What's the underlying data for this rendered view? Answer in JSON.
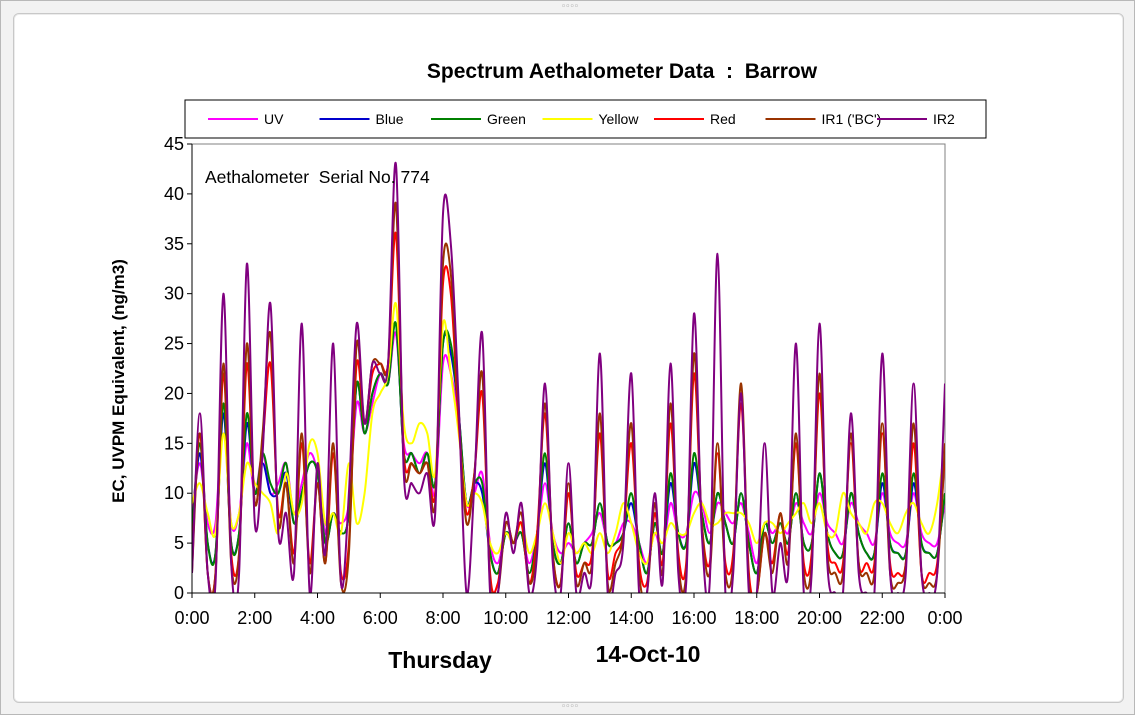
{
  "window": {
    "grip_glyph": "◦◦◦◦"
  },
  "chart_data": {
    "type": "line",
    "title": "Spectrum Aethalometer Data  :  Barrow",
    "annotation": "Aethalometer  Serial No. 774",
    "ylabel": "EC, UVPM Equivalent, (ng/m3)",
    "xlabel_day": "Thursday",
    "xlabel_date": "14-Oct-10",
    "ylim": [
      0,
      45
    ],
    "yticks": [
      0,
      5,
      10,
      15,
      20,
      25,
      30,
      35,
      40,
      45
    ],
    "xlim": [
      0,
      24
    ],
    "xticks": [
      "0:00",
      "2:00",
      "4:00",
      "6:00",
      "8:00",
      "10:00",
      "12:00",
      "14:00",
      "16:00",
      "18:00",
      "20:00",
      "22:00",
      "0:00"
    ],
    "grid": false,
    "legend_position": "top",
    "x_hours": [
      0.0,
      0.25,
      0.5,
      0.75,
      1.0,
      1.25,
      1.5,
      1.75,
      2.0,
      2.25,
      2.5,
      2.75,
      3.0,
      3.25,
      3.5,
      3.75,
      4.0,
      4.25,
      4.5,
      4.75,
      5.0,
      5.25,
      5.5,
      5.75,
      6.0,
      6.25,
      6.5,
      6.75,
      7.0,
      7.25,
      7.5,
      7.75,
      8.0,
      8.25,
      8.5,
      8.75,
      9.0,
      9.25,
      9.5,
      9.75,
      10.0,
      10.25,
      10.5,
      10.75,
      11.0,
      11.25,
      11.5,
      11.75,
      12.0,
      12.25,
      12.5,
      12.75,
      13.0,
      13.25,
      13.5,
      13.75,
      14.0,
      14.25,
      14.5,
      14.75,
      15.0,
      15.25,
      15.5,
      15.75,
      16.0,
      16.25,
      16.5,
      16.75,
      17.0,
      17.25,
      17.5,
      17.75,
      18.0,
      18.25,
      18.5,
      18.75,
      19.0,
      19.25,
      19.5,
      19.75,
      20.0,
      20.25,
      20.5,
      20.75,
      21.0,
      21.25,
      21.5,
      21.75,
      22.0,
      22.25,
      22.5,
      22.75,
      23.0,
      23.25,
      23.5,
      23.75,
      24.0
    ],
    "series": [
      {
        "name": "UV",
        "color": "#ff00ff",
        "values": [
          8,
          13,
          7,
          7,
          18,
          7,
          8,
          15,
          10,
          14,
          10,
          11,
          13,
          8,
          11,
          14,
          12,
          6,
          8,
          7,
          9,
          19,
          16,
          19,
          22,
          21,
          26,
          15,
          14,
          13,
          14,
          10,
          23,
          22,
          17,
          9,
          10,
          12,
          5,
          3,
          6,
          5,
          6,
          3,
          6,
          11,
          6,
          4,
          5,
          4,
          5,
          6,
          8,
          5,
          5,
          7,
          7,
          5,
          3,
          6,
          4,
          9,
          6,
          6,
          10,
          9,
          6,
          9,
          8,
          7,
          9,
          6,
          3,
          7,
          6,
          7,
          6,
          9,
          7,
          6,
          10,
          7,
          6,
          5,
          9,
          7,
          6,
          5,
          10,
          6,
          5,
          5,
          10,
          6,
          5,
          5,
          9
        ]
      },
      {
        "name": "Blue",
        "color": "#0000cc",
        "values": [
          6,
          14,
          5,
          4,
          18,
          5,
          6,
          17,
          10,
          13,
          10,
          10,
          12,
          7,
          10,
          13,
          12,
          5,
          8,
          6,
          8,
          21,
          16,
          20,
          22,
          21,
          27,
          14,
          14,
          12,
          14,
          11,
          25,
          24,
          18,
          9,
          11,
          10,
          4,
          2,
          6,
          5,
          6,
          2,
          6,
          13,
          5,
          3,
          7,
          3,
          5,
          5,
          9,
          5,
          5,
          6,
          9,
          5,
          2,
          7,
          4,
          11,
          6,
          5,
          13,
          8,
          5,
          10,
          7,
          5,
          10,
          5,
          2,
          7,
          5,
          7,
          5,
          10,
          5,
          5,
          12,
          6,
          4,
          4,
          10,
          6,
          4,
          4,
          11,
          5,
          4,
          4,
          11,
          5,
          4,
          4,
          10
        ]
      },
      {
        "name": "Green",
        "color": "#008000",
        "values": [
          6,
          15,
          5,
          4,
          19,
          5,
          6,
          18,
          10,
          14,
          11,
          10,
          13,
          7,
          10,
          13,
          12,
          5,
          8,
          6,
          8,
          21,
          16,
          20,
          22,
          21,
          27,
          14,
          14,
          12,
          14,
          11,
          25,
          25,
          18,
          9,
          11,
          11,
          4,
          2,
          6,
          5,
          6,
          2,
          6,
          14,
          5,
          3,
          7,
          3,
          5,
          5,
          9,
          5,
          5,
          6,
          10,
          5,
          2,
          7,
          4,
          12,
          6,
          5,
          14,
          8,
          5,
          10,
          7,
          5,
          10,
          5,
          2,
          7,
          5,
          7,
          5,
          10,
          5,
          5,
          12,
          6,
          4,
          4,
          10,
          6,
          4,
          4,
          12,
          5,
          4,
          4,
          12,
          5,
          4,
          4,
          10
        ]
      },
      {
        "name": "Yellow",
        "color": "#ffff00",
        "values": [
          9,
          11,
          8,
          6,
          16,
          7,
          8,
          13,
          11,
          10,
          9,
          6,
          12,
          8,
          9,
          15,
          14,
          7,
          8,
          6,
          13,
          7,
          10,
          18,
          20,
          22,
          29,
          17,
          15,
          17,
          16,
          12,
          27,
          22,
          16,
          9,
          10,
          9,
          5,
          4,
          6,
          5,
          7,
          4,
          6,
          9,
          6,
          3,
          6,
          4,
          5,
          4,
          6,
          4,
          6,
          9,
          7,
          4,
          3,
          6,
          5,
          7,
          6,
          6,
          8,
          9,
          7,
          7,
          8,
          8,
          8,
          7,
          5,
          7,
          7,
          6,
          7,
          8,
          9,
          7,
          9,
          6,
          6,
          10,
          8,
          7,
          6,
          9,
          9,
          7,
          6,
          8,
          9,
          7,
          6,
          9,
          15
        ]
      },
      {
        "name": "Red",
        "color": "#ff0000",
        "values": [
          3,
          16,
          2,
          2,
          22,
          4,
          4,
          23,
          9,
          15,
          23,
          8,
          11,
          4,
          15,
          3,
          11,
          3,
          14,
          2,
          5,
          23,
          17,
          22,
          23,
          23,
          36,
          14,
          13,
          12,
          13,
          10,
          31,
          30,
          17,
          8,
          12,
          20,
          2,
          1,
          7,
          5,
          7,
          1,
          6,
          18,
          4,
          1,
          10,
          2,
          3,
          4,
          16,
          2,
          4,
          6,
          15,
          3,
          1,
          8,
          3,
          17,
          4,
          3,
          22,
          7,
          3,
          14,
          3,
          4,
          19,
          2,
          0,
          6,
          3,
          8,
          4,
          15,
          3,
          4,
          20,
          5,
          3,
          3,
          15,
          3,
          3,
          3,
          16,
          3,
          2,
          3,
          15,
          2,
          2,
          3,
          14
        ]
      },
      {
        "name": "IR1 ('BC')",
        "color": "#993300",
        "values": [
          2,
          16,
          2,
          2,
          23,
          3,
          4,
          25,
          9,
          16,
          26,
          7,
          11,
          3,
          16,
          2,
          11,
          3,
          15,
          1,
          4,
          25,
          17,
          23,
          23,
          23,
          39,
          13,
          13,
          12,
          13,
          9,
          33,
          32,
          18,
          7,
          12,
          22,
          1,
          0,
          7,
          5,
          8,
          1,
          5,
          19,
          4,
          1,
          11,
          1,
          3,
          3,
          18,
          1,
          3,
          6,
          17,
          2,
          0,
          9,
          2,
          19,
          3,
          2,
          24,
          7,
          2,
          15,
          2,
          3,
          21,
          1,
          0,
          6,
          2,
          8,
          3,
          16,
          2,
          3,
          22,
          4,
          2,
          2,
          16,
          3,
          2,
          2,
          17,
          2,
          1,
          3,
          17,
          2,
          1,
          2,
          15
        ]
      },
      {
        "name": "IR2",
        "color": "#800080",
        "values": [
          2,
          18,
          2,
          1,
          30,
          3,
          2,
          33,
          7,
          14,
          29,
          6,
          8,
          2,
          27,
          0,
          13,
          4,
          25,
          1,
          10,
          27,
          17,
          23,
          22,
          23,
          43,
          12,
          11,
          10,
          12,
          8,
          38,
          35,
          19,
          0,
          11,
          26,
          0,
          0,
          8,
          4,
          9,
          0,
          4,
          21,
          3,
          0,
          13,
          0,
          2,
          2,
          24,
          0,
          2,
          5,
          22,
          0,
          0,
          10,
          1,
          23,
          2,
          1,
          28,
          6,
          1,
          34,
          0,
          2,
          20,
          0,
          0,
          15,
          0,
          5,
          2,
          25,
          0,
          2,
          27,
          3,
          0,
          0,
          18,
          2,
          0,
          0,
          24,
          2,
          0,
          2,
          21,
          2,
          0,
          2,
          21
        ]
      }
    ]
  }
}
